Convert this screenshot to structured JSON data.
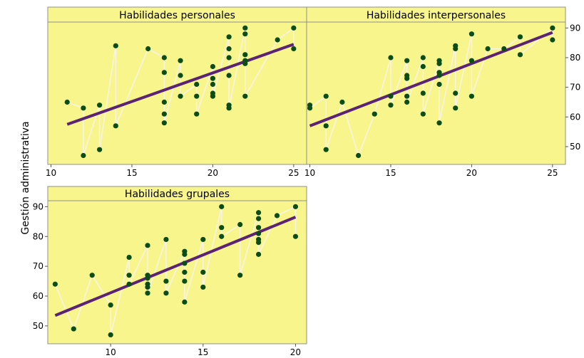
{
  "y_axis_label": "Gestión administrativa",
  "colors": {
    "panel_background": "#f8f58c",
    "points": "#0a4d16",
    "fit_line": "#5b2373",
    "connector": "#f7f4e6",
    "frame": "#8f8f8f"
  },
  "chart_data": [
    {
      "type": "scatter",
      "title": "Habilidades personales",
      "xlim": [
        9.8,
        25.8
      ],
      "ylim": [
        44,
        92
      ],
      "xticks": [
        10,
        15,
        20,
        25
      ],
      "yticks": [
        50,
        60,
        70,
        80,
        90
      ],
      "y_ticks_side": "right",
      "fit_line": {
        "x": [
          11,
          25
        ],
        "y": [
          57.5,
          84.5
        ]
      },
      "points": [
        [
          11,
          65
        ],
        [
          12,
          63
        ],
        [
          12,
          47
        ],
        [
          13,
          64
        ],
        [
          13,
          49
        ],
        [
          14,
          84
        ],
        [
          14,
          57
        ],
        [
          16,
          83
        ],
        [
          17,
          80
        ],
        [
          17,
          75
        ],
        [
          17,
          65
        ],
        [
          17,
          61
        ],
        [
          17,
          58
        ],
        [
          18,
          79
        ],
        [
          18,
          74
        ],
        [
          18,
          67
        ],
        [
          19,
          71
        ],
        [
          19,
          67
        ],
        [
          19,
          61
        ],
        [
          20,
          77
        ],
        [
          20,
          73
        ],
        [
          20,
          71
        ],
        [
          20,
          68
        ],
        [
          20,
          67
        ],
        [
          21,
          87
        ],
        [
          21,
          83
        ],
        [
          21,
          80
        ],
        [
          21,
          74
        ],
        [
          21,
          64
        ],
        [
          21,
          63
        ],
        [
          22,
          90
        ],
        [
          22,
          88
        ],
        [
          22,
          81
        ],
        [
          22,
          79
        ],
        [
          22,
          78
        ],
        [
          22,
          67
        ],
        [
          24,
          86
        ],
        [
          25,
          90
        ],
        [
          25,
          83
        ]
      ]
    },
    {
      "type": "scatter",
      "title": "Habilidades interpersonales",
      "xlim": [
        9.8,
        25.8
      ],
      "ylim": [
        44,
        92
      ],
      "xticks": [
        10,
        15,
        20,
        25
      ],
      "yticks": [
        50,
        60,
        70,
        80,
        90
      ],
      "y_ticks_side": "right",
      "fit_line": {
        "x": [
          10,
          25
        ],
        "y": [
          57,
          88.5
        ]
      },
      "points": [
        [
          10,
          64
        ],
        [
          10,
          63
        ],
        [
          11,
          67
        ],
        [
          11,
          57
        ],
        [
          11,
          49
        ],
        [
          12,
          65
        ],
        [
          13,
          47
        ],
        [
          14,
          61
        ],
        [
          15,
          80
        ],
        [
          15,
          67
        ],
        [
          15,
          64
        ],
        [
          16,
          79
        ],
        [
          16,
          74
        ],
        [
          16,
          73
        ],
        [
          16,
          67
        ],
        [
          16,
          65
        ],
        [
          17,
          80
        ],
        [
          17,
          77
        ],
        [
          17,
          68
        ],
        [
          17,
          61
        ],
        [
          18,
          79
        ],
        [
          18,
          78
        ],
        [
          18,
          75
        ],
        [
          18,
          74
        ],
        [
          18,
          71
        ],
        [
          18,
          58
        ],
        [
          19,
          84
        ],
        [
          19,
          83
        ],
        [
          19,
          68
        ],
        [
          19,
          63
        ],
        [
          20,
          88
        ],
        [
          20,
          79
        ],
        [
          20,
          67
        ],
        [
          21,
          83
        ],
        [
          22,
          83
        ],
        [
          23,
          87
        ],
        [
          23,
          81
        ],
        [
          25,
          90
        ],
        [
          25,
          86
        ]
      ]
    },
    {
      "type": "scatter",
      "title": "Habilidades grupales",
      "xlim": [
        6.6,
        20.6
      ],
      "ylim": [
        44,
        92
      ],
      "xticks": [
        10,
        15,
        20
      ],
      "yticks": [
        50,
        60,
        70,
        80,
        90
      ],
      "y_ticks_side": "left",
      "fit_line": {
        "x": [
          7,
          20
        ],
        "y": [
          53.5,
          86.5
        ]
      },
      "points": [
        [
          7,
          64
        ],
        [
          8,
          49
        ],
        [
          9,
          67
        ],
        [
          10,
          57
        ],
        [
          10,
          47
        ],
        [
          11,
          73
        ],
        [
          11,
          67
        ],
        [
          11,
          64
        ],
        [
          12,
          77
        ],
        [
          12,
          67
        ],
        [
          12,
          66
        ],
        [
          12,
          64
        ],
        [
          12,
          63
        ],
        [
          12,
          61
        ],
        [
          13,
          79
        ],
        [
          13,
          65
        ],
        [
          13,
          61
        ],
        [
          14,
          75
        ],
        [
          14,
          74
        ],
        [
          14,
          71
        ],
        [
          14,
          68
        ],
        [
          14,
          65
        ],
        [
          14,
          58
        ],
        [
          15,
          79
        ],
        [
          15,
          68
        ],
        [
          15,
          63
        ],
        [
          16,
          90
        ],
        [
          16,
          83
        ],
        [
          16,
          80
        ],
        [
          17,
          84
        ],
        [
          17,
          67
        ],
        [
          18,
          88
        ],
        [
          18,
          86
        ],
        [
          18,
          83
        ],
        [
          18,
          81
        ],
        [
          18,
          79
        ],
        [
          18,
          78
        ],
        [
          18,
          74
        ],
        [
          19,
          87
        ],
        [
          20,
          90
        ],
        [
          20,
          80
        ]
      ]
    }
  ]
}
